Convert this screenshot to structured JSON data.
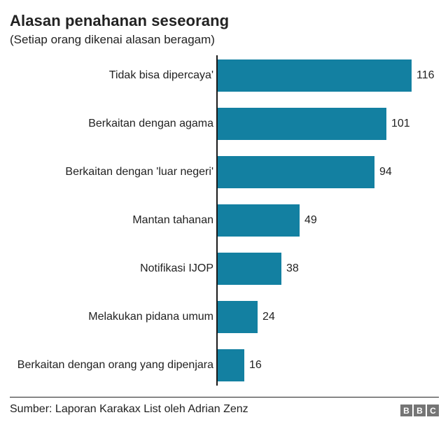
{
  "header": {
    "title": "Alasan penahanan seseorang",
    "subtitle": "(Setiap orang dikenai alasan beragam)"
  },
  "chart_data": {
    "type": "bar",
    "orientation": "horizontal",
    "title": "Alasan penahanan seseorang",
    "subtitle": "(Setiap orang dikenai alasan beragam)",
    "categories": [
      "Tidak bisa dipercaya'",
      "Berkaitan dengan agama",
      "Berkaitan dengan 'luar negeri'",
      "Mantan tahanan",
      "Notifikasi IJOP",
      "Melakukan pidana umum",
      "Berkaitan dengan orang yang dipenjara"
    ],
    "values": [
      116,
      101,
      94,
      49,
      38,
      24,
      16
    ],
    "xlim": [
      0,
      116
    ],
    "grid": false,
    "value_labels_shown": true,
    "bar_color": "#1380A1",
    "axis_line_color": "#1a1a1a",
    "label_color": "#222222"
  },
  "footer": {
    "source": "Sumber: Laporan Karakax List oleh Adrian Zenz",
    "logo_letters": [
      "B",
      "B",
      "C"
    ],
    "logo_block_color": "#757575",
    "logo_letter_color": "#ffffff"
  }
}
